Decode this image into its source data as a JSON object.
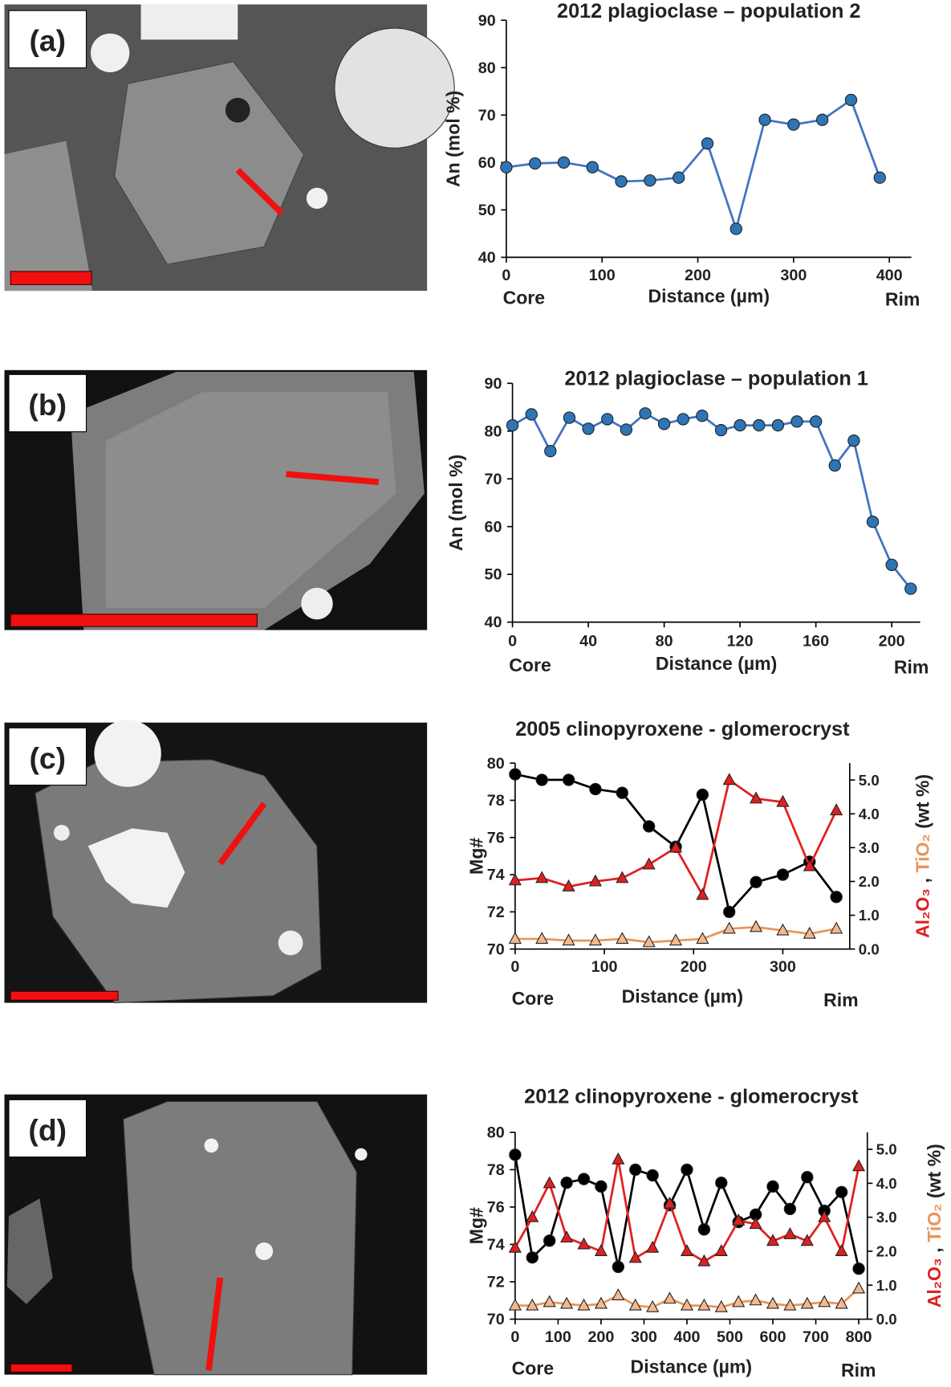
{
  "chart_data": [
    {
      "type": "line",
      "panel": "(a)",
      "title": "2012 plagioclase – population 2",
      "xlabel": "Distance (µm)",
      "ylabel": "An (mol %)",
      "x_start_label": "Core",
      "x_end_label": "Rim",
      "x": [
        0,
        30,
        60,
        90,
        120,
        150,
        180,
        210,
        240,
        270,
        300,
        330,
        360,
        390
      ],
      "series": [
        {
          "color": "#4472c4",
          "marker": "circle",
          "marker_color": "#2e75b6",
          "values": [
            59,
            59.8,
            60,
            59,
            56,
            56.2,
            56.8,
            64,
            46,
            69,
            68,
            69,
            73.2,
            56.8
          ]
        }
      ],
      "xlim": [
        0,
        423
      ],
      "xticks": [
        0,
        100,
        200,
        300,
        400
      ],
      "ylim": [
        40,
        90
      ],
      "yticks": [
        40,
        50,
        60,
        70,
        80,
        90
      ]
    },
    {
      "type": "line",
      "panel": "(b)",
      "title": "2012 plagioclase – population 1",
      "xlabel": "Distance (µm)",
      "ylabel": "An (mol %)",
      "x_start_label": "Core",
      "x_end_label": "Rim",
      "x": [
        0,
        10,
        20,
        30,
        40,
        50,
        60,
        70,
        80,
        90,
        100,
        110,
        120,
        130,
        140,
        150,
        160,
        170,
        180,
        190,
        200,
        210
      ],
      "series": [
        {
          "color": "#4472c4",
          "marker": "circle",
          "marker_color": "#2e75b6",
          "values": [
            81.2,
            83.5,
            75.8,
            82.8,
            80.5,
            82.5,
            80.3,
            83.7,
            81.5,
            82.5,
            83.2,
            80.2,
            81.2,
            81.2,
            81.2,
            82,
            82,
            72.8,
            78,
            61,
            52,
            47
          ]
        }
      ],
      "xlim": [
        0,
        215
      ],
      "xticks": [
        0,
        40,
        80,
        120,
        160,
        200
      ],
      "ylim": [
        40,
        90
      ],
      "yticks": [
        40,
        50,
        60,
        70,
        80,
        90
      ]
    },
    {
      "type": "line",
      "panel": "(c)",
      "title": "2005 clinopyroxene - glomerocryst",
      "xlabel": "Distance (µm)",
      "ylabel": "Mg#",
      "y2label": [
        "Al₂O₃",
        ",",
        "TiO₂",
        "(wt %)"
      ],
      "x_start_label": "Core",
      "x_end_label": "Rim",
      "x": [
        0,
        30,
        60,
        90,
        120,
        150,
        180,
        210,
        240,
        270,
        300,
        330,
        360
      ],
      "series": [
        {
          "color": "#000000",
          "marker": "circle",
          "marker_color": "#000000",
          "values": [
            79.4,
            79.1,
            79.1,
            78.6,
            78.4,
            76.6,
            75.5,
            78.3,
            72,
            73.6,
            74,
            74.7,
            72.8
          ]
        },
        {
          "color": "#e02020",
          "marker": "triangle",
          "marker_color": "#e02020",
          "axis": "y2",
          "values": [
            2.03,
            2.1,
            1.85,
            2.0,
            2.1,
            2.5,
            3.0,
            1.6,
            5.0,
            4.45,
            4.35,
            2.45,
            4.1
          ]
        },
        {
          "color": "#e8955a",
          "marker": "triangle",
          "marker_color": "#f4b890",
          "axis": "y2",
          "values": [
            0.3,
            0.3,
            0.25,
            0.25,
            0.3,
            0.2,
            0.25,
            0.3,
            0.6,
            0.65,
            0.55,
            0.45,
            0.6
          ]
        }
      ],
      "xlim": [
        0,
        375
      ],
      "xticks": [
        0,
        100,
        200,
        300
      ],
      "ylim": [
        70,
        80
      ],
      "yticks": [
        70,
        72,
        74,
        76,
        78,
        80
      ],
      "y2lim": [
        0,
        5.5
      ],
      "y2ticks": [
        {
          "value": 0,
          "label": "0.0"
        },
        {
          "value": 1,
          "label": "1.0"
        },
        {
          "value": 2,
          "label": "2.0"
        },
        {
          "value": 3,
          "label": "3.0"
        },
        {
          "value": 4,
          "label": "4.0"
        },
        {
          "value": 5,
          "label": "5.0"
        }
      ]
    },
    {
      "type": "line",
      "panel": "(d)",
      "title": "2012 clinopyroxene - glomerocryst",
      "xlabel": "Distance (µm)",
      "ylabel": "Mg#",
      "y2label": [
        "Al₂O₃",
        ",",
        "TiO₂",
        "(wt %)"
      ],
      "x_start_label": "Core",
      "x_end_label": "Rim",
      "x": [
        0,
        40,
        80,
        120,
        160,
        200,
        240,
        280,
        320,
        360,
        400,
        440,
        480,
        520,
        560,
        600,
        640,
        680,
        720,
        760,
        800
      ],
      "series": [
        {
          "color": "#000000",
          "marker": "circle",
          "marker_color": "#000000",
          "values": [
            78.8,
            73.3,
            74.2,
            77.3,
            77.5,
            77.1,
            72.8,
            78,
            77.7,
            76.1,
            78,
            74.8,
            77.3,
            75.2,
            75.6,
            77.1,
            75.9,
            77.6,
            75.8,
            76.8,
            72.7
          ]
        },
        {
          "color": "#e02020",
          "marker": "triangle",
          "marker_color": "#e02020",
          "axis": "y2",
          "values": [
            2.1,
            3.0,
            4.0,
            2.4,
            2.2,
            2.0,
            4.7,
            1.8,
            2.1,
            3.4,
            2.0,
            1.7,
            2.0,
            2.9,
            2.8,
            2.3,
            2.5,
            2.3,
            3.0,
            2.0,
            4.5
          ]
        },
        {
          "color": "#e8955a",
          "marker": "triangle",
          "marker_color": "#f4b890",
          "axis": "y2",
          "values": [
            0.4,
            0.4,
            0.5,
            0.45,
            0.4,
            0.45,
            0.7,
            0.4,
            0.35,
            0.6,
            0.4,
            0.4,
            0.35,
            0.5,
            0.55,
            0.45,
            0.4,
            0.45,
            0.5,
            0.45,
            0.9
          ]
        }
      ],
      "xlim": [
        0,
        820
      ],
      "xticks": [
        0,
        100,
        200,
        300,
        400,
        500,
        600,
        700,
        800
      ],
      "ylim": [
        70,
        80
      ],
      "yticks": [
        70,
        72,
        74,
        76,
        78,
        80
      ],
      "y2lim": [
        0,
        5.5
      ],
      "y2ticks": [
        {
          "value": 0,
          "label": "0.0"
        },
        {
          "value": 1,
          "label": "1.0"
        },
        {
          "value": 2,
          "label": "2.0"
        },
        {
          "value": 3,
          "label": "3.0"
        },
        {
          "value": 4,
          "label": "4.0"
        },
        {
          "value": 5,
          "label": "5.0"
        }
      ]
    }
  ]
}
